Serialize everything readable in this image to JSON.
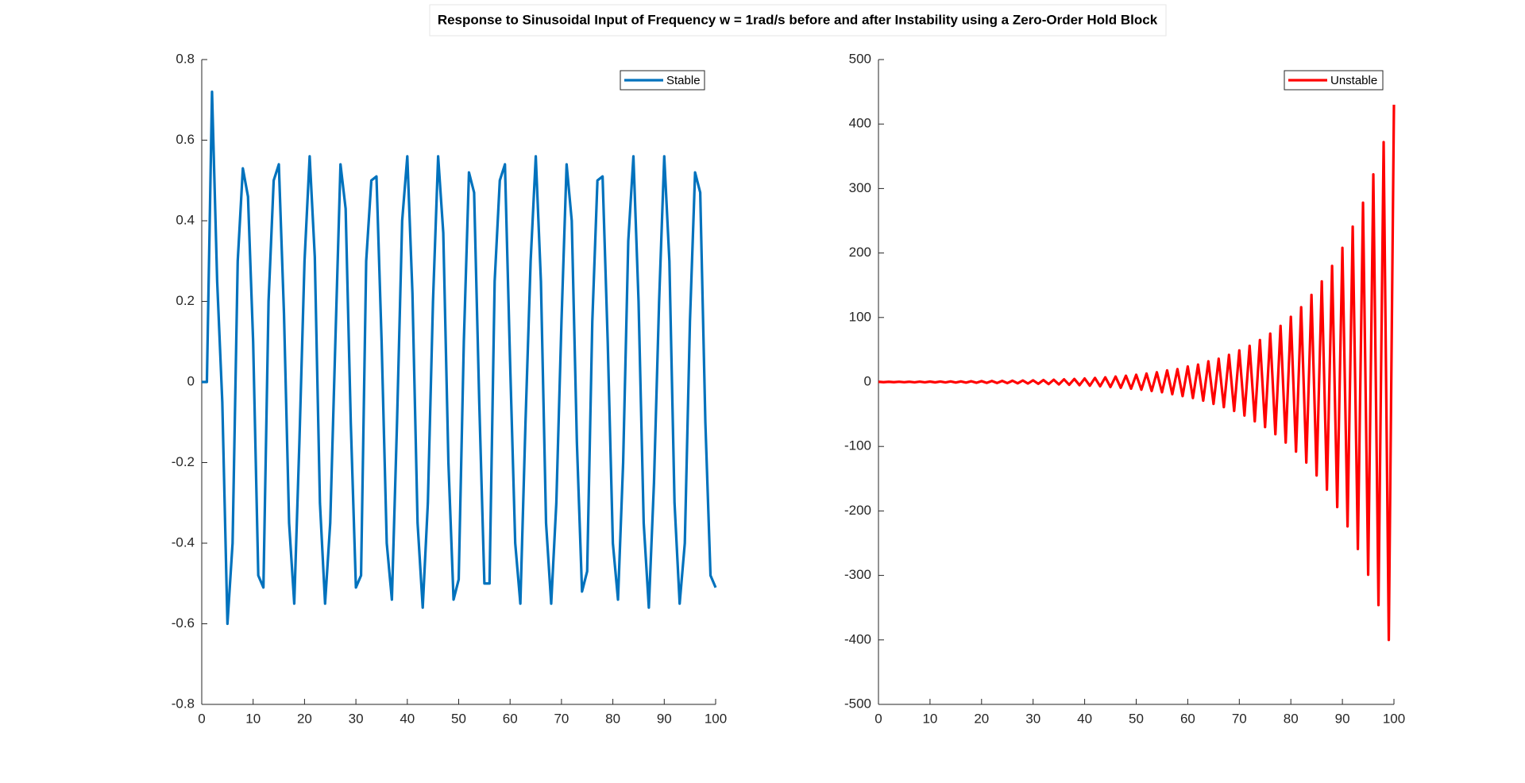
{
  "figure_title": "Response to Sinusoidal Input of Frequency w = 1rad/s before and after Instability using a Zero-Order Hold Block",
  "chart_data": [
    {
      "type": "line",
      "legend": "upper right",
      "x": [
        0,
        1,
        2,
        3,
        4,
        5,
        6,
        7,
        8,
        9,
        10,
        11,
        12,
        13,
        14,
        15,
        16,
        17,
        18,
        19,
        20,
        21,
        22,
        23,
        24,
        25,
        26,
        27,
        28,
        29,
        30,
        31,
        32,
        33,
        34,
        35,
        36,
        37,
        38,
        39,
        40,
        41,
        42,
        43,
        44,
        45,
        46,
        47,
        48,
        49,
        50,
        51,
        52,
        53,
        54,
        55,
        56,
        57,
        58,
        59,
        60,
        61,
        62,
        63,
        64,
        65,
        66,
        67,
        68,
        69,
        70,
        71,
        72,
        73,
        74,
        75,
        76,
        77,
        78,
        79,
        80,
        81,
        82,
        83,
        84,
        85,
        86,
        87,
        88,
        89,
        90,
        91,
        92,
        93,
        94,
        95,
        96,
        97,
        98,
        99,
        100
      ],
      "series": [
        {
          "name": "Stable",
          "color": "#0072bd",
          "values": [
            0,
            0,
            0.72,
            0.25,
            -0.05,
            -0.6,
            -0.4,
            0.3,
            0.53,
            0.46,
            0.1,
            -0.48,
            -0.51,
            0.2,
            0.5,
            0.54,
            0.17,
            -0.35,
            -0.55,
            -0.15,
            0.3,
            0.56,
            0.31,
            -0.3,
            -0.55,
            -0.35,
            0.1,
            0.54,
            0.43,
            -0.1,
            -0.51,
            -0.48,
            0.3,
            0.5,
            0.51,
            0.1,
            -0.4,
            -0.54,
            -0.1,
            0.4,
            0.56,
            0.22,
            -0.35,
            -0.56,
            -0.3,
            0.2,
            0.56,
            0.37,
            -0.2,
            -0.54,
            -0.49,
            0.1,
            0.52,
            0.47,
            -0.05,
            -0.5,
            -0.5,
            0.25,
            0.5,
            0.54,
            0.05,
            -0.4,
            -0.55,
            -0.1,
            0.3,
            0.56,
            0.25,
            -0.35,
            -0.55,
            -0.3,
            0.15,
            0.54,
            0.4,
            -0.15,
            -0.52,
            -0.47,
            0.15,
            0.5,
            0.51,
            0.1,
            -0.4,
            -0.54,
            -0.2,
            0.35,
            0.56,
            0.2,
            -0.35,
            -0.56,
            -0.25,
            0.2,
            0.56,
            0.3,
            -0.3,
            -0.55,
            -0.4,
            0.15,
            0.52,
            0.47,
            -0.1,
            -0.48,
            -0.51
          ]
        }
      ],
      "xlim": [
        0,
        100
      ],
      "xticks": [
        0,
        10,
        20,
        30,
        40,
        50,
        60,
        70,
        80,
        90,
        100
      ],
      "ylim": [
        -0.8,
        0.8
      ],
      "yticks": [
        -0.8,
        -0.6,
        -0.4,
        -0.2,
        0,
        0.2,
        0.4,
        0.6,
        0.8
      ]
    },
    {
      "type": "line",
      "legend": "upper right",
      "x": [
        0,
        1,
        2,
        3,
        4,
        5,
        6,
        7,
        8,
        9,
        10,
        11,
        12,
        13,
        14,
        15,
        16,
        17,
        18,
        19,
        20,
        21,
        22,
        23,
        24,
        25,
        26,
        27,
        28,
        29,
        30,
        31,
        32,
        33,
        34,
        35,
        36,
        37,
        38,
        39,
        40,
        41,
        42,
        43,
        44,
        45,
        46,
        47,
        48,
        49,
        50,
        51,
        52,
        53,
        54,
        55,
        56,
        57,
        58,
        59,
        60,
        61,
        62,
        63,
        64,
        65,
        66,
        67,
        68,
        69,
        70,
        71,
        72,
        73,
        74,
        75,
        76,
        77,
        78,
        79,
        80,
        81,
        82,
        83,
        84,
        85,
        86,
        87,
        88,
        89,
        90,
        91,
        92,
        93,
        94,
        95,
        96,
        97,
        98,
        99,
        100
      ],
      "series": [
        {
          "name": "Unstable",
          "color": "#ff0000",
          "values": [
            0.3,
            -0.3,
            0.3,
            -0.3,
            0.4,
            -0.4,
            0.4,
            -0.5,
            0.5,
            -0.5,
            0.6,
            -0.6,
            0.7,
            -0.7,
            0.8,
            -0.9,
            0.9,
            -1,
            1.1,
            -1.2,
            1.3,
            -1.4,
            1.5,
            -1.6,
            1.7,
            -1.8,
            2,
            -2.1,
            2.3,
            -2.4,
            2.6,
            -2.8,
            3,
            -3.3,
            3.5,
            -3.8,
            4.1,
            -4.4,
            4.7,
            -5,
            5.4,
            -5.8,
            6.3,
            -6.7,
            7.2,
            -7.8,
            8.4,
            -9,
            9.7,
            -10.4,
            11.2,
            -12,
            13,
            -14,
            15,
            -16,
            18,
            -19,
            20,
            -22,
            24,
            -25,
            27,
            -29,
            32,
            -34,
            36,
            -39,
            42,
            -45,
            49,
            -52,
            56,
            -61,
            65,
            -70,
            75,
            -81,
            87,
            -94,
            101,
            -108,
            116,
            -125,
            135,
            -145,
            156,
            -167,
            180,
            -194,
            208,
            -224,
            241,
            -259,
            278,
            -299,
            322,
            -346,
            372,
            -400,
            430
          ]
        }
      ],
      "xlim": [
        0,
        100
      ],
      "xticks": [
        0,
        10,
        20,
        30,
        40,
        50,
        60,
        70,
        80,
        90,
        100
      ],
      "ylim": [
        -500,
        500
      ],
      "yticks": [
        -500,
        -400,
        -300,
        -200,
        -100,
        0,
        100,
        200,
        300,
        400,
        500
      ]
    }
  ]
}
